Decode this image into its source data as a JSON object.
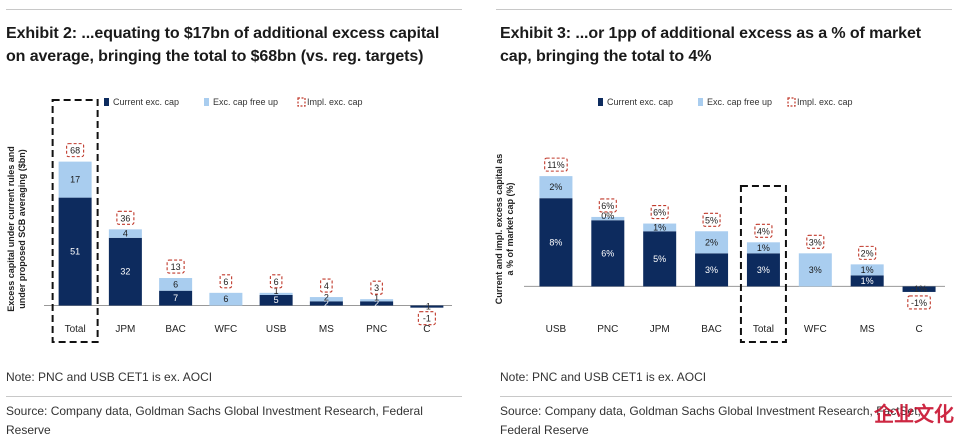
{
  "exhibits": [
    {
      "title": "Exhibit 2: ...equating to $17bn of additional excess capital\non average, bringing the total to $68bn (vs. reg. targets)",
      "note": "Note: PNC and USB CET1 is ex. AOCI",
      "source": "Source: Company data, Goldman Sachs Global Investment Research, Federal Reserve"
    },
    {
      "title": "Exhibit 3: ...or 1pp of additional excess as a % of market\ncap, bringing the total to 4%",
      "note": "Note: PNC and USB CET1 is ex. AOCI",
      "source": "Source: Company data, Goldman Sachs Global Investment Research, FactSet, Federal Reserve"
    }
  ],
  "watermark": "企业文化",
  "chart_data": [
    {
      "type": "bar",
      "stacked": true,
      "ylabel": "Excess capital under current rules and under proposed SCB averaging ($bn)",
      "xlabel": "",
      "categories": [
        "Total",
        "JPM",
        "BAC",
        "WFC",
        "USB",
        "MS",
        "PNC",
        "C"
      ],
      "series": [
        {
          "name": "Current exc. cap",
          "color": "#0d2b5e",
          "values": [
            51,
            32,
            7,
            0,
            5,
            2,
            2,
            -1
          ]
        },
        {
          "name": "Exc. cap free up",
          "color": "#a9cdef",
          "values": [
            17,
            4,
            6,
            6,
            1,
            2,
            1,
            0
          ]
        }
      ],
      "data_labels": {
        "current": [
          "51",
          "32",
          "7",
          "",
          "5",
          "2",
          "2",
          "-1"
        ],
        "freeup": [
          "17",
          "4",
          "6",
          "6",
          "1",
          "2",
          "1",
          ""
        ]
      },
      "implied_label": "Impl. exc. cap",
      "implied": [
        "68",
        "36",
        "13",
        "6",
        "6",
        "4",
        "3",
        "-1"
      ],
      "highlight_category": "Total",
      "legend_position": "top",
      "ylim": [
        -4,
        82
      ],
      "grid": false
    },
    {
      "type": "bar",
      "stacked": true,
      "ylabel": "Current and impl. excess capital as a % of market cap (%)",
      "xlabel": "",
      "categories": [
        "USB",
        "PNC",
        "JPM",
        "BAC",
        "Total",
        "WFC",
        "MS",
        "C"
      ],
      "series": [
        {
          "name": "Current exc. cap",
          "color": "#0d2b5e",
          "values": [
            8,
            6,
            5,
            3,
            3,
            0,
            1,
            -0.5
          ]
        },
        {
          "name": "Exc. cap free up",
          "color": "#a9cdef",
          "values": [
            2,
            0.3,
            0.7,
            2,
            1,
            3,
            1,
            0
          ]
        }
      ],
      "data_labels": {
        "current": [
          "8%",
          "6%",
          "5%",
          "3%",
          "3%",
          "",
          "1%",
          "-1%"
        ],
        "freeup": [
          "2%",
          "0%",
          "1%",
          "2%",
          "1%",
          "3%",
          "1%",
          ""
        ]
      },
      "implied_label": "Impl. exc. cap",
      "implied": [
        "11%",
        "6%",
        "6%",
        "5%",
        "4%",
        "3%",
        "2%",
        "-1%"
      ],
      "highlight_category": "Total",
      "legend_position": "top",
      "ylim": [
        -2.5,
        14
      ],
      "grid": false
    }
  ]
}
